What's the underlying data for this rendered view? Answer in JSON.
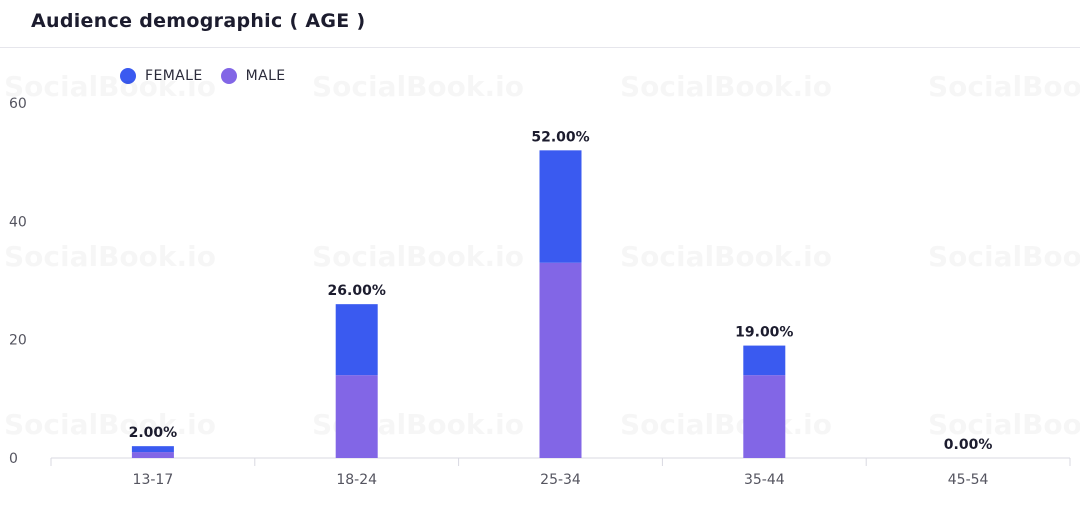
{
  "title": "Audience demographic ( AGE )",
  "watermark": "SocialBook.io",
  "legend": [
    {
      "label": "FEMALE",
      "color": "#3a5af0"
    },
    {
      "label": "MALE",
      "color": "#8266e6"
    }
  ],
  "chart_data": {
    "type": "bar",
    "stacked": true,
    "categories": [
      "13-17",
      "18-24",
      "25-34",
      "35-44",
      "45-54"
    ],
    "series": [
      {
        "name": "MALE",
        "color": "#8266e6",
        "values": [
          1,
          14,
          33,
          14,
          0
        ]
      },
      {
        "name": "FEMALE",
        "color": "#3a5af0",
        "values": [
          1,
          12,
          19,
          5,
          0
        ]
      }
    ],
    "totals_labels": [
      "2.00%",
      "26.00%",
      "52.00%",
      "19.00%",
      "0.00%"
    ],
    "yticks": [
      0,
      20,
      40,
      60
    ],
    "ylim": [
      0,
      60
    ],
    "title": "Audience demographic ( AGE )",
    "xlabel": "",
    "ylabel": "",
    "grid": false,
    "legend_position": "top-left"
  }
}
